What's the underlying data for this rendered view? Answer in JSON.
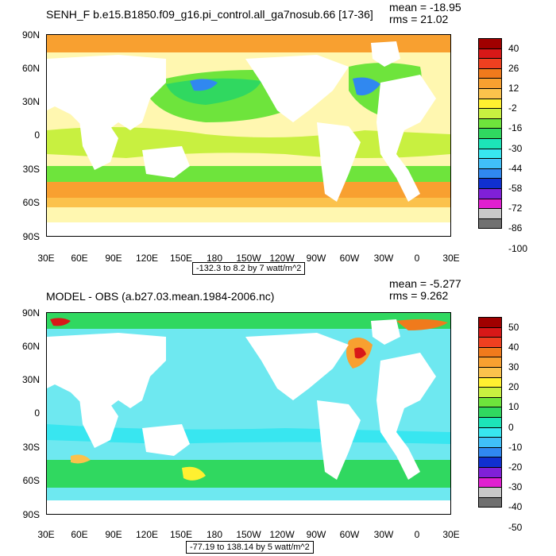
{
  "panels": [
    {
      "title": "SENH_F b.e15.B1850.f09_g16.pi_control.all_ga7nosub.66 [17-36]",
      "mean": "mean = -18.95",
      "rms": "rms = 21.02",
      "range": "-132.3 to 8.2 by 7 watt/m^2",
      "lat_labels": [
        "90N",
        "60N",
        "30N",
        "0",
        "30S",
        "60S",
        "90S"
      ],
      "lon_labels": [
        "30E",
        "60E",
        "90E",
        "120E",
        "150E",
        "180",
        "150W",
        "120W",
        "90W",
        "60W",
        "30W",
        "0",
        "30E"
      ],
      "legend_labels": [
        "40",
        "26",
        "12",
        "-2",
        "-16",
        "-30",
        "-44",
        "-58",
        "-72",
        "-86",
        "-100"
      ],
      "legend_colors": [
        "#a00000",
        "#d81818",
        "#f04020",
        "#f07a1c",
        "#f8a030",
        "#fbc24c",
        "#fff030",
        "#c8f040",
        "#6ee43c",
        "#30d860",
        "#1ce4b8",
        "#38e6f0",
        "#40c0f8",
        "#3088f0",
        "#1030d0",
        "#8020d8",
        "#e020d0",
        "#c8c8c8",
        "#707070"
      ],
      "background": "#fff7b0"
    },
    {
      "title": "MODEL - OBS (a.b27.03.mean.1984-2006.nc)",
      "mean": "mean = -5.277",
      "rms": "rms = 9.262",
      "range": "-77.19 to 138.14 by 5 watt/m^2",
      "lat_labels": [
        "90N",
        "60N",
        "30N",
        "0",
        "30S",
        "60S",
        "90S"
      ],
      "lon_labels": [
        "30E",
        "60E",
        "90E",
        "120E",
        "150E",
        "180",
        "150W",
        "120W",
        "90W",
        "60W",
        "30W",
        "0",
        "30E"
      ],
      "legend_labels": [
        "50",
        "40",
        "30",
        "20",
        "10",
        "0",
        "-10",
        "-20",
        "-30",
        "-40",
        "-50"
      ],
      "legend_colors": [
        "#a00000",
        "#d81818",
        "#f04020",
        "#f07a1c",
        "#f8a030",
        "#fbc24c",
        "#fff030",
        "#c8f040",
        "#6ee43c",
        "#30d860",
        "#1ce4b8",
        "#38e6f0",
        "#40c0f8",
        "#3088f0",
        "#1030d0",
        "#8020d8",
        "#e020d0",
        "#c8c8c8",
        "#707070"
      ],
      "background": "#6ee8f0"
    }
  ]
}
